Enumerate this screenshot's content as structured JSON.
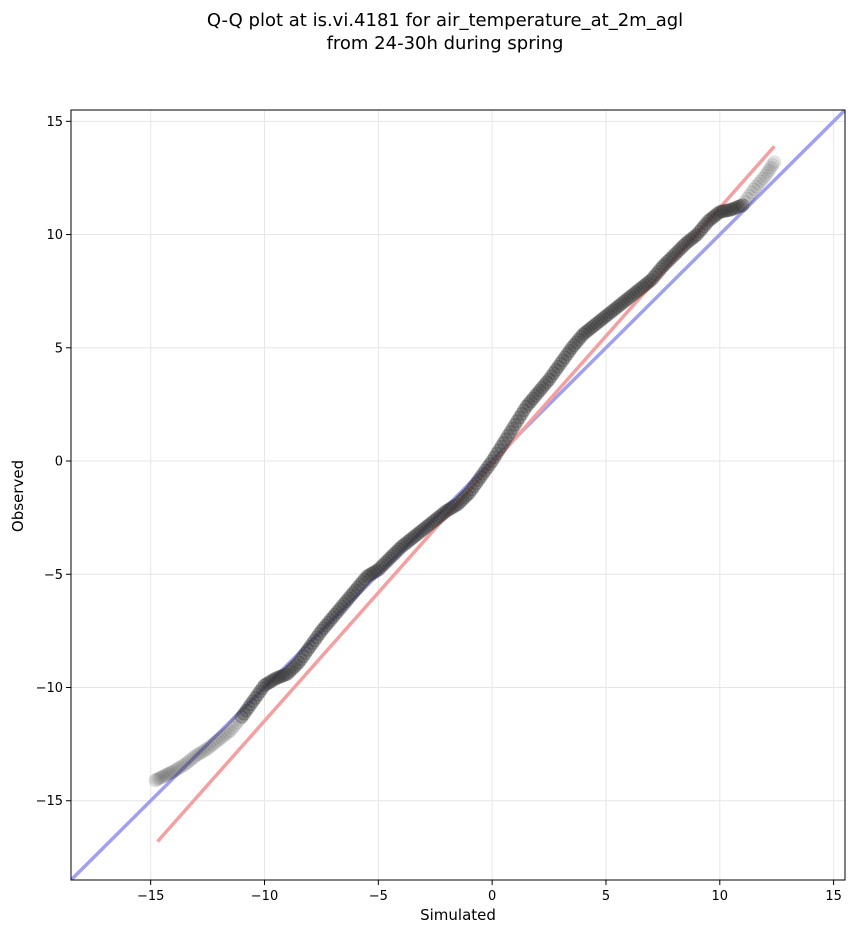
{
  "chart_data": {
    "type": "scatter",
    "title": "Q-Q plot at is.vi.4181 for air_temperature_at_2m_agl",
    "subtitle": "from 24-30h during spring",
    "xlabel": "Simulated",
    "ylabel": "Observed",
    "xlim": [
      -18.5,
      15.5
    ],
    "ylim": [
      -18.5,
      15.5
    ],
    "xticks": [
      -15,
      -10,
      -5,
      0,
      5,
      10,
      15
    ],
    "yticks": [
      -15,
      -10,
      -5,
      0,
      5,
      10,
      15
    ],
    "xtick_labels": [
      "−15",
      "−10",
      "−5",
      "0",
      "5",
      "10",
      "15"
    ],
    "ytick_labels": [
      "−15",
      "−10",
      "−5",
      "0",
      "5",
      "10",
      "15"
    ],
    "grid": true,
    "reference_line": {
      "slope": 1,
      "intercept": 0,
      "color": "#a0a0f0"
    },
    "fit_line": {
      "x": [
        -14.7,
        12.4
      ],
      "y": [
        -16.8,
        13.9
      ],
      "color": "#f4a0a0"
    },
    "qq_points": {
      "color": "#333333",
      "x": [
        -14.8,
        -14.4,
        -14.0,
        -13.5,
        -13.0,
        -12.5,
        -12.0,
        -11.5,
        -11.0,
        -10.5,
        -10.0,
        -9.5,
        -9.0,
        -8.5,
        -8.0,
        -7.5,
        -7.0,
        -6.5,
        -6.0,
        -5.5,
        -5.0,
        -4.5,
        -4.0,
        -3.5,
        -3.0,
        -2.5,
        -2.0,
        -1.5,
        -1.0,
        -0.5,
        0.0,
        0.5,
        1.0,
        1.5,
        2.0,
        2.5,
        3.0,
        3.5,
        4.0,
        4.5,
        5.0,
        5.5,
        6.0,
        6.5,
        7.0,
        7.5,
        8.0,
        8.5,
        9.0,
        9.5,
        10.0,
        10.5,
        11.0,
        11.5,
        12.0,
        12.4
      ],
      "y": [
        -14.1,
        -13.9,
        -13.7,
        -13.4,
        -13.0,
        -12.7,
        -12.3,
        -11.9,
        -11.3,
        -10.6,
        -9.9,
        -9.6,
        -9.4,
        -8.9,
        -8.2,
        -7.5,
        -6.9,
        -6.3,
        -5.7,
        -5.1,
        -4.8,
        -4.3,
        -3.8,
        -3.4,
        -3.0,
        -2.6,
        -2.2,
        -1.9,
        -1.4,
        -0.7,
        0.0,
        0.8,
        1.6,
        2.4,
        3.0,
        3.6,
        4.3,
        5.0,
        5.6,
        6.0,
        6.4,
        6.8,
        7.2,
        7.6,
        8.0,
        8.6,
        9.1,
        9.6,
        10.0,
        10.6,
        11.0,
        11.1,
        11.3,
        12.0,
        12.6,
        13.2
      ]
    }
  }
}
